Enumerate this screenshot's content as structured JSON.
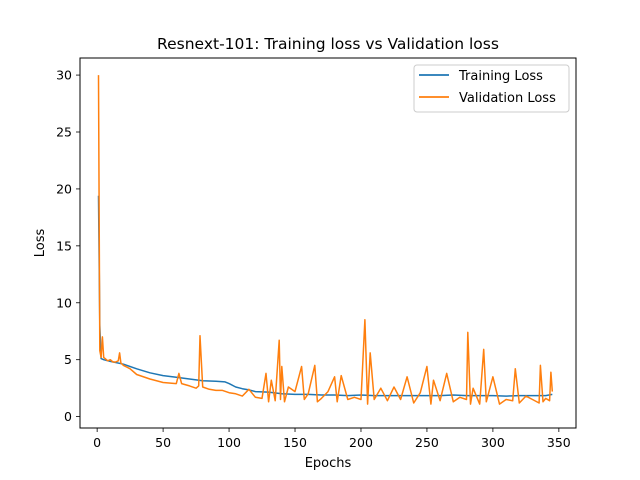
{
  "chart_data": {
    "type": "line",
    "title": "Resnext-101: Training loss vs Validation loss",
    "xlabel": "Epochs",
    "ylabel": "Loss",
    "xlim": [
      -13,
      363
    ],
    "ylim": [
      -1.0,
      31.5
    ],
    "xticks": [
      0,
      50,
      100,
      150,
      200,
      250,
      300,
      350
    ],
    "yticks": [
      0,
      5,
      10,
      15,
      20,
      25,
      30
    ],
    "grid": false,
    "legend_position": "upper right",
    "series": [
      {
        "name": "Training Loss",
        "color": "#1f77b4",
        "x": [
          1,
          2,
          3,
          5,
          10,
          20,
          30,
          40,
          50,
          60,
          70,
          80,
          90,
          97,
          100,
          105,
          110,
          115,
          120,
          130,
          140,
          150,
          160,
          170,
          180,
          190,
          200,
          210,
          220,
          230,
          240,
          250,
          260,
          270,
          280,
          290,
          300,
          310,
          320,
          330,
          340,
          345
        ],
        "values": [
          19.4,
          8.0,
          5.1,
          5.0,
          4.85,
          4.6,
          4.2,
          3.85,
          3.6,
          3.45,
          3.3,
          3.15,
          3.1,
          3.05,
          2.9,
          2.6,
          2.45,
          2.35,
          2.2,
          2.15,
          2.0,
          1.95,
          1.95,
          1.9,
          1.9,
          1.85,
          1.9,
          1.85,
          1.85,
          1.85,
          1.85,
          1.85,
          1.85,
          1.9,
          1.85,
          1.85,
          1.85,
          1.8,
          1.85,
          1.85,
          1.85,
          1.95
        ]
      },
      {
        "name": "Validation Loss",
        "color": "#ff7f0e",
        "x": [
          1,
          2,
          3,
          4,
          5,
          6,
          8,
          10,
          12,
          14,
          16,
          17,
          18,
          20,
          25,
          30,
          40,
          50,
          60,
          62,
          64,
          70,
          75,
          77,
          78,
          80,
          85,
          90,
          95,
          100,
          105,
          110,
          115,
          120,
          125,
          128,
          130,
          132,
          135,
          138,
          139,
          140,
          142,
          145,
          150,
          155,
          157,
          160,
          165,
          167,
          170,
          175,
          180,
          182,
          185,
          190,
          195,
          200,
          203,
          205,
          207,
          210,
          215,
          220,
          225,
          230,
          235,
          240,
          245,
          250,
          253,
          255,
          260,
          265,
          270,
          275,
          280,
          281,
          283,
          285,
          290,
          293,
          295,
          300,
          305,
          310,
          315,
          317,
          320,
          325,
          330,
          335,
          336,
          338,
          340,
          343,
          344,
          345
        ],
        "values": [
          30.0,
          5.8,
          5.2,
          7.0,
          5.2,
          5.1,
          4.9,
          5.0,
          4.8,
          4.8,
          4.9,
          5.6,
          4.7,
          4.5,
          4.2,
          3.7,
          3.3,
          3.0,
          2.9,
          3.8,
          2.9,
          2.7,
          2.5,
          2.7,
          7.1,
          2.6,
          2.4,
          2.3,
          2.3,
          2.1,
          2.0,
          1.8,
          2.4,
          1.7,
          1.6,
          3.8,
          1.3,
          3.2,
          1.4,
          6.7,
          1.5,
          4.4,
          1.3,
          2.6,
          2.2,
          4.4,
          1.5,
          2.0,
          4.5,
          1.3,
          1.6,
          2.2,
          3.5,
          1.3,
          3.6,
          1.5,
          1.7,
          1.5,
          8.5,
          1.1,
          5.6,
          1.5,
          2.5,
          1.4,
          2.6,
          1.5,
          3.5,
          1.2,
          2.1,
          4.4,
          1.1,
          3.2,
          1.4,
          3.8,
          1.3,
          1.7,
          1.5,
          7.4,
          1.1,
          2.5,
          1.1,
          5.9,
          1.3,
          3.5,
          1.1,
          1.5,
          1.4,
          4.2,
          1.2,
          1.8,
          1.5,
          1.2,
          4.5,
          1.3,
          1.6,
          1.4,
          3.9,
          2.2
        ]
      }
    ]
  }
}
